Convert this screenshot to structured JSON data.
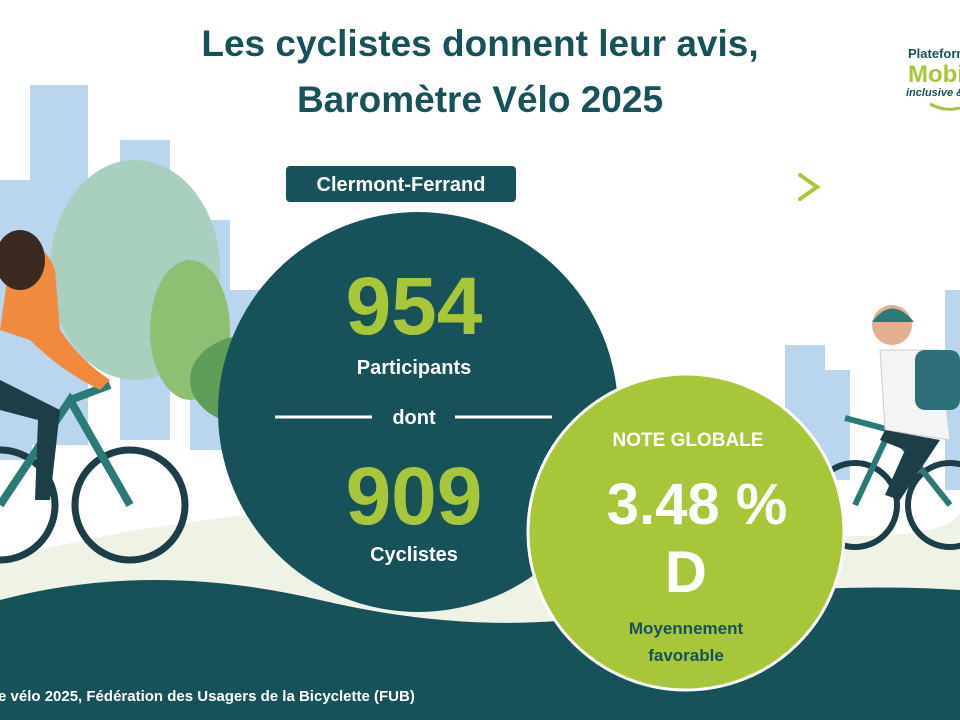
{
  "header": {
    "title_lines": [
      "Les cyclistes donnent leur avis,",
      "Baromètre Vélo 2025"
    ]
  },
  "logo": {
    "lines": [
      "Plateforme",
      "Mobil",
      "inclusive &"
    ]
  },
  "city": "Clermont-Ferrand",
  "participants": {
    "value": 954,
    "label": "Participants"
  },
  "separator": "dont",
  "cyclists": {
    "value": 909,
    "label": "Cyclistes"
  },
  "score": {
    "title": "NOTE GLOBALE",
    "value": "3.48 %",
    "grade": "D",
    "description_lines": [
      "Moyennement",
      "favorable"
    ]
  },
  "footer": {
    "source": "e vélo 2025, Fédération des Usagers de la Bicyclette (FUB)"
  }
}
